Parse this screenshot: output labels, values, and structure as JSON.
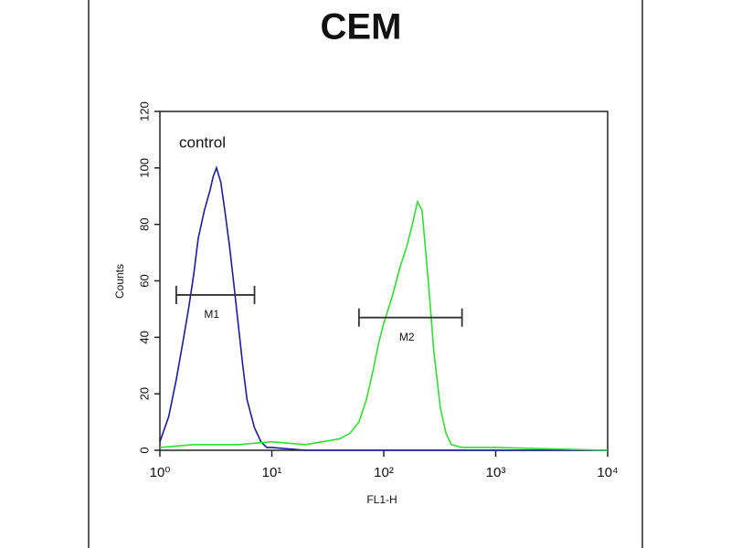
{
  "chart_data": {
    "type": "line",
    "title": "CEM",
    "x_label": "FL1-H",
    "y_label": "Counts",
    "annotation": "control",
    "x_scale": "log",
    "grid": false,
    "xlim": [
      1,
      10000
    ],
    "xticks": [
      {
        "value": 1,
        "label": "10⁰"
      },
      {
        "value": 10,
        "label": "10¹"
      },
      {
        "value": 100,
        "label": "10²"
      },
      {
        "value": 1000,
        "label": "10³"
      },
      {
        "value": 10000,
        "label": "10⁴"
      }
    ],
    "ylim": [
      0,
      120
    ],
    "yticks": [
      0,
      20,
      40,
      60,
      80,
      100,
      120
    ],
    "series": [
      {
        "color": "#1c1c9e",
        "x": [
          1,
          1.2,
          1.4,
          1.6,
          1.8,
          2.0,
          2.2,
          2.5,
          2.8,
          3.0,
          3.2,
          3.5,
          3.8,
          4.2,
          4.6,
          5.0,
          5.5,
          6.0,
          7.0,
          8.0,
          9.0,
          10,
          20,
          50,
          100,
          1000,
          10000
        ],
        "values": [
          3,
          12,
          25,
          38,
          50,
          62,
          75,
          85,
          92,
          97,
          100,
          95,
          85,
          72,
          58,
          45,
          30,
          18,
          8,
          3,
          1,
          1,
          0,
          0,
          0,
          0,
          0
        ]
      },
      {
        "color": "#33dd33",
        "x": [
          1,
          2,
          5,
          10,
          20,
          40,
          50,
          60,
          70,
          80,
          90,
          100,
          120,
          140,
          160,
          180,
          200,
          220,
          250,
          280,
          320,
          360,
          400,
          500,
          1000,
          10000
        ],
        "values": [
          1,
          2,
          2,
          3,
          2,
          4,
          6,
          10,
          18,
          28,
          38,
          45,
          55,
          65,
          72,
          80,
          88,
          85,
          60,
          35,
          15,
          6,
          2,
          1,
          1,
          0
        ]
      }
    ],
    "markers": [
      {
        "label": "M1",
        "range": [
          1.4,
          7
        ],
        "y": 55
      },
      {
        "label": "M2",
        "range": [
          60,
          500
        ],
        "y": 47
      }
    ]
  }
}
